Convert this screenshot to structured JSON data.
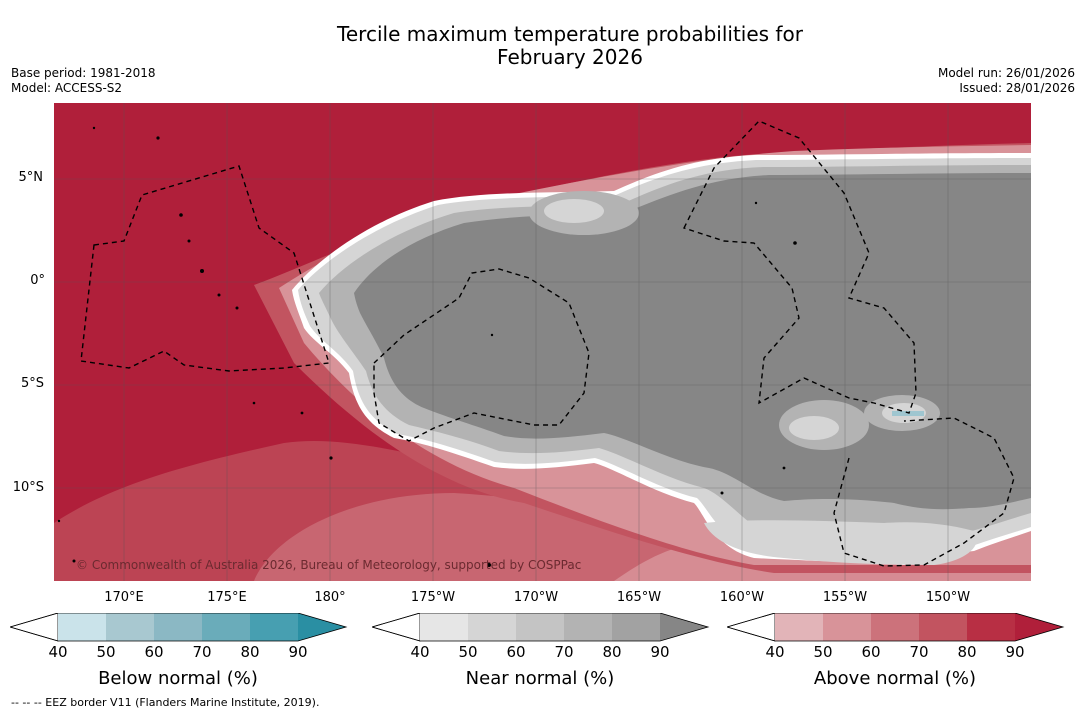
{
  "title": {
    "line1": "Tercile maximum temperature probabilities for",
    "line2": "February 2026"
  },
  "meta": {
    "base_period": "Base period: 1981-2018",
    "model": "Model: ACCESS-S2",
    "model_run": "Model run: 26/01/2026",
    "issued": "Issued: 28/01/2026"
  },
  "latitude_labels": [
    "5°N",
    "0°",
    "5°S",
    "10°S"
  ],
  "longitude_labels": [
    "170°E",
    "175°E",
    "180°",
    "175°W",
    "170°W",
    "165°W",
    "160°W",
    "155°W",
    "150°W"
  ],
  "copyright": "© Commonwealth of Australia 2026, Bureau of Meteorology, supported by COSPPac",
  "colorbars": {
    "below": {
      "label": "Below normal (%)",
      "ticks": [
        "40",
        "50",
        "60",
        "70",
        "80",
        "90"
      ],
      "colors": [
        "#ffffff",
        "#cae3ea",
        "#a8c8d0",
        "#8bb8c4",
        "#6aacba",
        "#479fb1",
        "#2a8fa3"
      ]
    },
    "near": {
      "label": "Near normal (%)",
      "ticks": [
        "40",
        "50",
        "60",
        "70",
        "80",
        "90"
      ],
      "colors": [
        "#ffffff",
        "#e6e6e6",
        "#d5d5d5",
        "#c4c4c4",
        "#b3b3b3",
        "#a2a2a2",
        "#868686"
      ]
    },
    "above": {
      "label": "Above normal (%)",
      "ticks": [
        "40",
        "50",
        "60",
        "70",
        "80",
        "90"
      ],
      "colors": [
        "#ffffff",
        "#e2b4b8",
        "#d89399",
        "#cc727b",
        "#c25460",
        "#b82f44",
        "#b01f3a"
      ]
    }
  },
  "footnote": "-- -- -- EEZ border V11 (Flanders Marine Institute, 2019)."
}
